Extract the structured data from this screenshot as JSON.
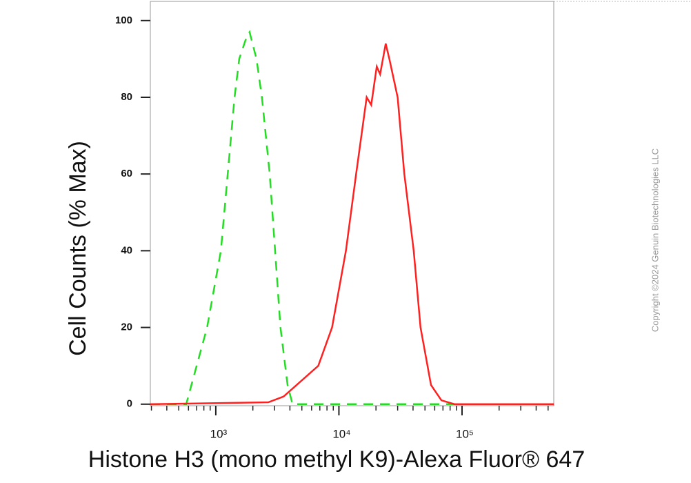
{
  "chart_data": {
    "type": "line",
    "y_label": "Cell Counts (% Max)",
    "x_label": "Histone H3 (mono methyl K9)-Alexa Fluor® 647",
    "copyright": "Copyright ©2024 Genuin Biotechnologies LLC",
    "log_x": true,
    "xlim": [
      294,
      556000
    ],
    "ylim": [
      -0.4,
      105
    ],
    "xticks": [
      {
        "value": 1000,
        "label": "10³"
      },
      {
        "value": 10000,
        "label": "10⁴"
      },
      {
        "value": 100000,
        "label": "10⁵"
      }
    ],
    "xminorticks": [
      300,
      400,
      500,
      600,
      700,
      800,
      900,
      2000,
      3000,
      4000,
      5000,
      6000,
      7000,
      8000,
      9000,
      20000,
      30000,
      40000,
      50000,
      60000,
      70000,
      80000,
      90000,
      200000,
      300000,
      400000,
      500000
    ],
    "yticks": [
      0,
      20,
      40,
      60,
      80,
      100
    ],
    "series": [
      {
        "color": "#22dd22",
        "dashed": true,
        "x": [
          294,
          575,
          850,
          1100,
          1250,
          1420,
          1550,
          1790,
          1880,
          2140,
          2370,
          2740,
          3030,
          3350,
          3830,
          4200,
          556000
        ],
        "values": [
          0,
          0,
          20,
          40,
          60,
          80,
          90,
          96,
          97,
          90,
          80,
          60,
          40,
          20,
          5,
          0,
          0
        ]
      },
      {
        "color": "#ff2020",
        "dashed": false,
        "x": [
          294,
          2670,
          3550,
          6800,
          8800,
          11400,
          13800,
          16800,
          18300,
          20300,
          21600,
          24000,
          25700,
          30000,
          34000,
          40500,
          46000,
          56000,
          68000,
          87000,
          556000
        ],
        "values": [
          0,
          0.5,
          2,
          10,
          20,
          40,
          60,
          80,
          78,
          88,
          86,
          94,
          90,
          80,
          60,
          40,
          20,
          5,
          1,
          0,
          0
        ]
      }
    ]
  }
}
